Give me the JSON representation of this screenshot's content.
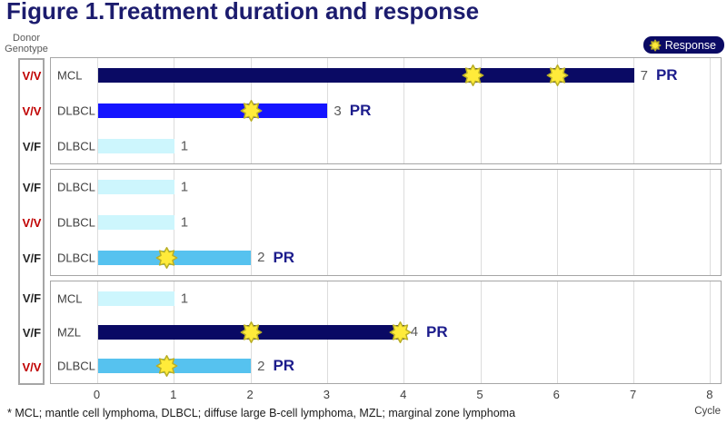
{
  "title": "Figure 1.Treatment duration and response",
  "donor_label": {
    "line1": "Donor",
    "line2": "Genotype"
  },
  "legend": {
    "label": "Response",
    "marker": "yellow-star"
  },
  "footnote": "* MCL; mantle cell lymphoma, DLBCL; diffuse large B-cell lymphoma, MZL; marginal zone lymphoma",
  "colors": {
    "title_navy": "#1c1c6e",
    "pr_navy": "#1c1c8c",
    "legend_bg": "#0a0a64",
    "dark_navy": "#0a0a64",
    "bright_blue": "#1414ff",
    "sky_blue": "#56c2ef",
    "pale_cyan": "#cdf6fd",
    "star_fill": "#ffeb3a",
    "star_stroke": "#b9ae26",
    "grid": "#dcdcdc",
    "panel_border": "#a6a6a6",
    "genotype": {
      "V/V": "#c00000",
      "V/F": "#262626"
    }
  },
  "chart_data": {
    "type": "bar",
    "orientation": "horizontal",
    "title": "Figure 1.Treatment duration and response",
    "xlabel": "Cycle",
    "xlim": [
      0,
      8
    ],
    "xticks": [
      0,
      1,
      2,
      3,
      4,
      5,
      6,
      7,
      8
    ],
    "grid": true,
    "legend_position": "top-right",
    "legend_entries": [
      {
        "label": "Response",
        "marker": "yellow-star"
      }
    ],
    "panels": [
      {
        "rows": [
          {
            "donor_genotype": "V/V",
            "diagnosis": "MCL",
            "duration_cycles": 7,
            "bar_color_key": "dark_navy",
            "response": "PR",
            "response_at_cycles": [
              4.9,
              6
            ]
          },
          {
            "donor_genotype": "V/V",
            "diagnosis": "DLBCL",
            "duration_cycles": 3,
            "bar_color_key": "bright_blue",
            "response": "PR",
            "response_at_cycles": [
              2
            ]
          },
          {
            "donor_genotype": "V/F",
            "diagnosis": "DLBCL",
            "duration_cycles": 1,
            "bar_color_key": "pale_cyan",
            "response": null,
            "response_at_cycles": []
          }
        ]
      },
      {
        "rows": [
          {
            "donor_genotype": "V/F",
            "diagnosis": "DLBCL",
            "duration_cycles": 1,
            "bar_color_key": "pale_cyan",
            "response": null,
            "response_at_cycles": []
          },
          {
            "donor_genotype": "V/V",
            "diagnosis": "DLBCL",
            "duration_cycles": 1,
            "bar_color_key": "pale_cyan",
            "response": null,
            "response_at_cycles": []
          },
          {
            "donor_genotype": "V/F",
            "diagnosis": "DLBCL",
            "duration_cycles": 2,
            "bar_color_key": "sky_blue",
            "response": "PR",
            "response_at_cycles": [
              0.9
            ]
          }
        ]
      },
      {
        "rows": [
          {
            "donor_genotype": "V/F",
            "diagnosis": "MCL",
            "duration_cycles": 1,
            "bar_color_key": "pale_cyan",
            "response": null,
            "response_at_cycles": []
          },
          {
            "donor_genotype": "V/F",
            "diagnosis": "MZL",
            "duration_cycles": 4,
            "bar_color_key": "dark_navy",
            "response": "PR",
            "response_at_cycles": [
              2,
              3.95
            ]
          },
          {
            "donor_genotype": "V/V",
            "diagnosis": "DLBCL",
            "duration_cycles": 2,
            "bar_color_key": "sky_blue",
            "response": "PR",
            "response_at_cycles": [
              0.9
            ]
          }
        ]
      }
    ]
  }
}
